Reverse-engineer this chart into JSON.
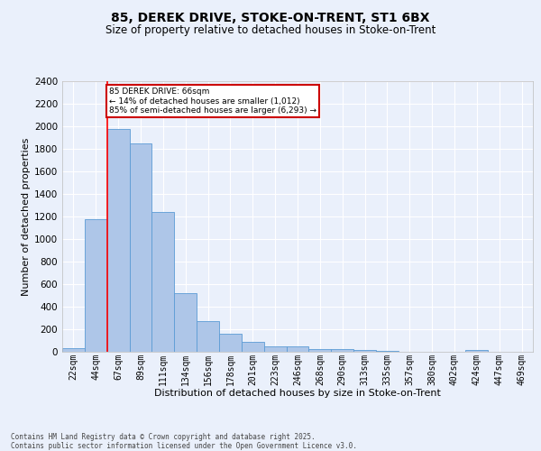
{
  "title_line1": "85, DEREK DRIVE, STOKE-ON-TRENT, ST1 6BX",
  "title_line2": "Size of property relative to detached houses in Stoke-on-Trent",
  "xlabel": "Distribution of detached houses by size in Stoke-on-Trent",
  "ylabel": "Number of detached properties",
  "categories": [
    "22sqm",
    "44sqm",
    "67sqm",
    "89sqm",
    "111sqm",
    "134sqm",
    "156sqm",
    "178sqm",
    "201sqm",
    "223sqm",
    "246sqm",
    "268sqm",
    "290sqm",
    "313sqm",
    "335sqm",
    "357sqm",
    "380sqm",
    "402sqm",
    "424sqm",
    "447sqm",
    "469sqm"
  ],
  "values": [
    30,
    1175,
    1975,
    1850,
    1240,
    520,
    275,
    160,
    90,
    50,
    45,
    25,
    22,
    20,
    10,
    0,
    0,
    0,
    20,
    0,
    0
  ],
  "bar_color": "#aec6e8",
  "bar_edge_color": "#5b9bd5",
  "annotation_text": "85 DEREK DRIVE: 66sqm\n← 14% of detached houses are smaller (1,012)\n85% of semi-detached houses are larger (6,293) →",
  "annotation_box_color": "#ffffff",
  "annotation_box_edge_color": "#cc0000",
  "ylim": [
    0,
    2400
  ],
  "yticks": [
    0,
    200,
    400,
    600,
    800,
    1000,
    1200,
    1400,
    1600,
    1800,
    2000,
    2200,
    2400
  ],
  "red_line_x": 1.5,
  "footnote": "Contains HM Land Registry data © Crown copyright and database right 2025.\nContains public sector information licensed under the Open Government Licence v3.0.",
  "background_color": "#eaf0fb",
  "grid_color": "#ffffff",
  "title_fontsize": 10,
  "subtitle_fontsize": 8.5,
  "axis_label_fontsize": 8,
  "tick_fontsize": 7,
  "footnote_fontsize": 5.5
}
